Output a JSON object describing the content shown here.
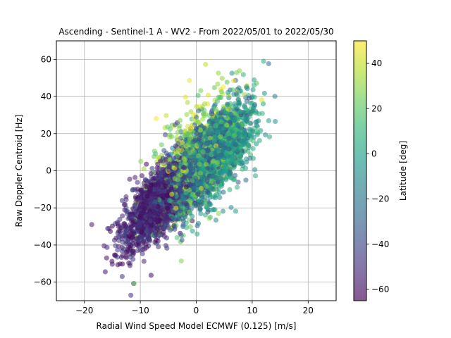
{
  "chart_data": {
    "type": "scatter",
    "title": "Ascending - Sentinel-1 A - WV2 - From 2022/05/01 to 2022/05/30",
    "xlabel": "Radial Wind Speed Model ECMWF (0.125) [m/s]",
    "ylabel": "Raw Doppler Centroid [Hz]",
    "xlim": [
      -25,
      25
    ],
    "ylim": [
      -70,
      70
    ],
    "x_ticks": [
      -20,
      -10,
      0,
      10,
      20
    ],
    "y_ticks": [
      -60,
      -40,
      -20,
      0,
      20,
      40,
      60
    ],
    "grid": true,
    "colorbar": {
      "label": "Latitude [deg]",
      "range": [
        -65,
        50
      ],
      "ticks": [
        -60,
        -40,
        -20,
        0,
        20,
        40
      ],
      "colormap": "viridis",
      "stops": [
        "#440154",
        "#482878",
        "#3e4989",
        "#31688e",
        "#26828e",
        "#1f9e89",
        "#35b779",
        "#6ece58",
        "#b5de2b",
        "#fde725"
      ]
    },
    "point_alpha": 0.55,
    "clusters": [
      {
        "lat_range": [
          -65,
          -40
        ],
        "x_mean": -7,
        "y_mean": -18,
        "x_sd": 5.5,
        "y_sd": 16,
        "count": 1500
      },
      {
        "lat_range": [
          -40,
          -15
        ],
        "x_mean": 1,
        "y_mean": 5,
        "x_sd": 6,
        "y_sd": 18,
        "count": 1200
      },
      {
        "lat_range": [
          -15,
          15
        ],
        "x_mean": 4,
        "y_mean": 10,
        "x_sd": 6,
        "y_sd": 20,
        "count": 1100
      },
      {
        "lat_range": [
          15,
          35
        ],
        "x_mean": 0,
        "y_mean": 5,
        "x_sd": 7,
        "y_sd": 24,
        "count": 600
      },
      {
        "lat_range": [
          35,
          50
        ],
        "x_mean": 0,
        "y_mean": 15,
        "x_sd": 7,
        "y_sd": 25,
        "count": 120
      }
    ]
  }
}
